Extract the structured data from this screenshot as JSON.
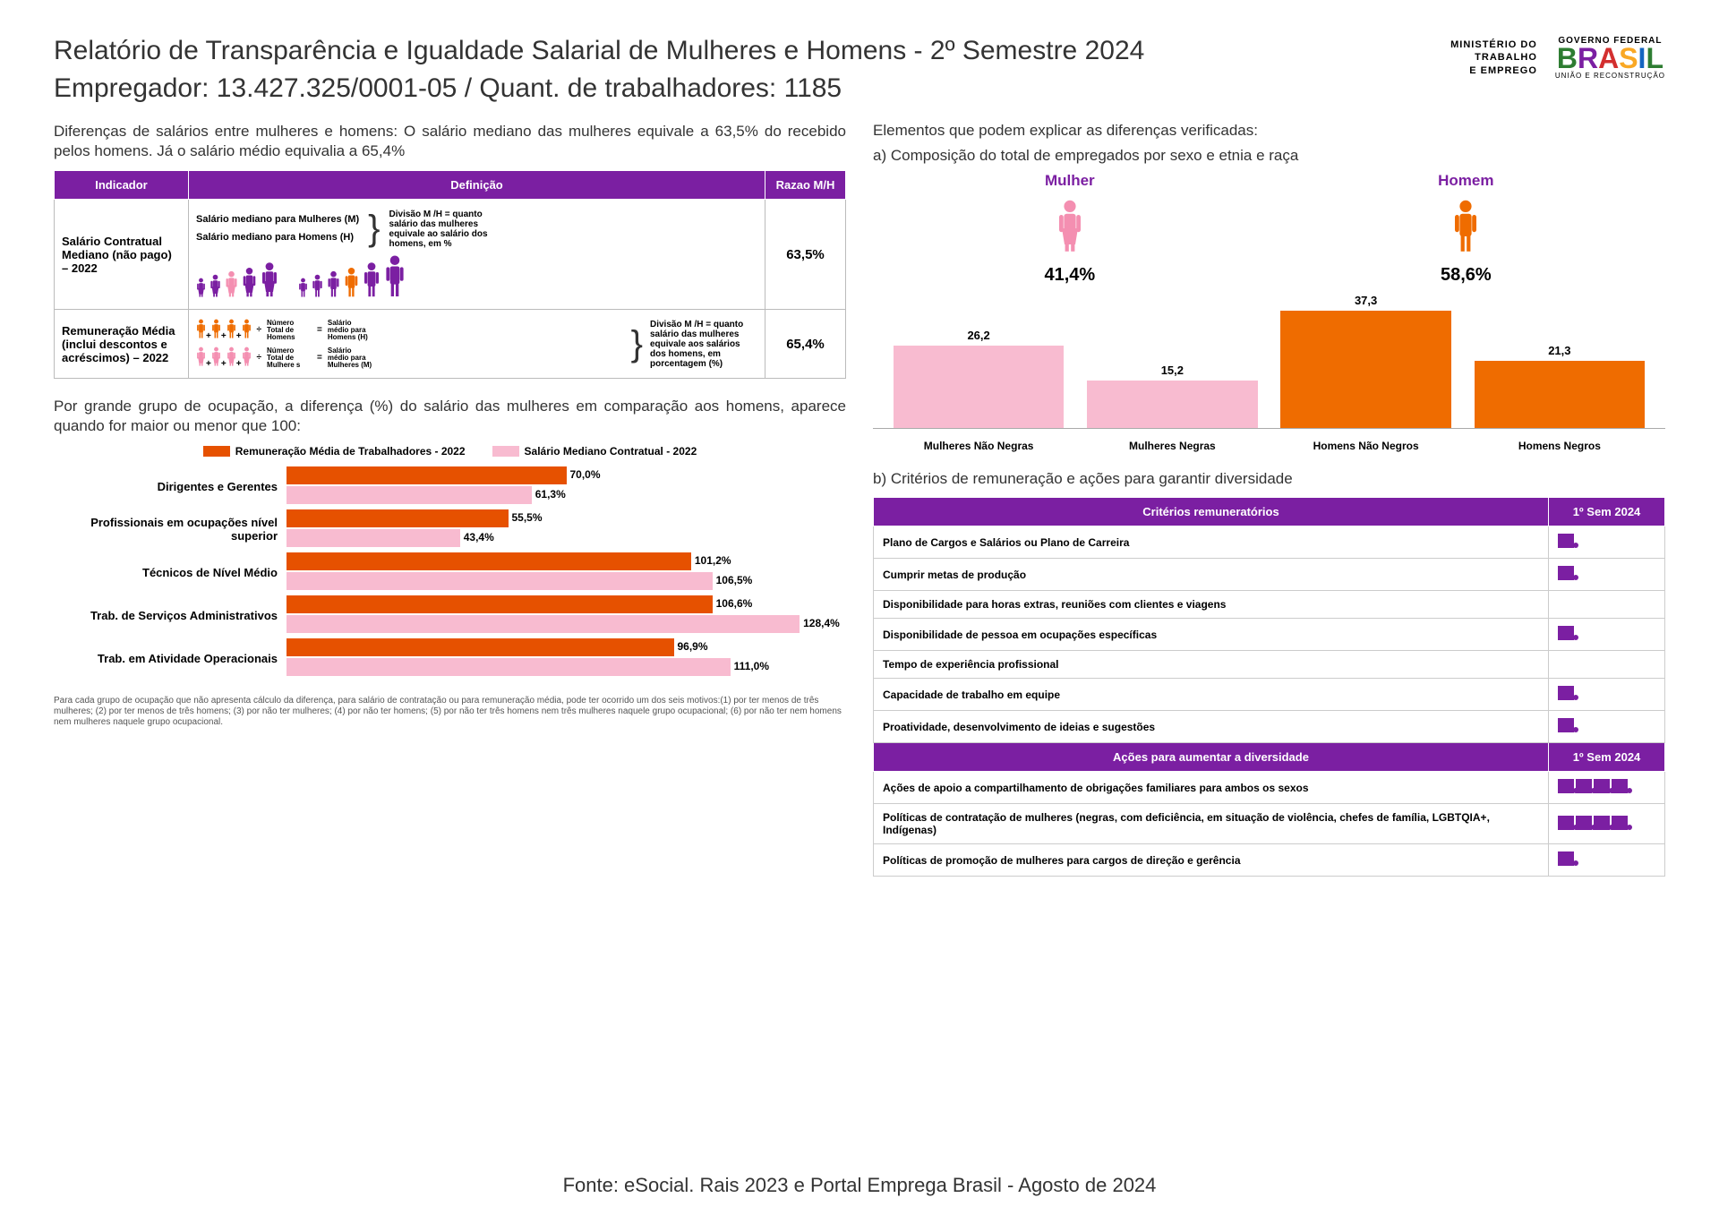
{
  "header": {
    "title": "Relatório de Transparência e Igualdade Salarial de Mulheres e Homens - 2º Semestre 2024",
    "subtitle_prefix": "Empregador: ",
    "employer": "13.427.325/0001-05",
    "separator": "    /    ",
    "workers_prefix": "Quant. de trabalhadores: ",
    "workers": "1185",
    "ministry_l1": "MINISTÉRIO DO",
    "ministry_l2": "TRABALHO",
    "ministry_l3": "E EMPREGO",
    "gov_top": "GOVERNO FEDERAL",
    "gov_bot": "UNIÃO E RECONSTRUÇÃO"
  },
  "left": {
    "intro": "Diferenças de salários entre mulheres e homens: O salário mediano das mulheres equivale a 63,5% do recebido pelos homens. Já o salário médio equivalia a 65,4%",
    "table_headers": {
      "c1": "Indicador",
      "c2": "Definição",
      "c3": "Razao M/H"
    },
    "row1": {
      "indicator": "Salário Contratual Mediano (não pago) – 2022",
      "def_m": "Salário mediano para Mulheres (M)",
      "def_h": "Salário mediano para Homens (H)",
      "def_expl": "Divisão M /H = quanto salário das mulheres equivale ao salário dos homens, em %",
      "ratio": "63,5%"
    },
    "row2": {
      "indicator": "Remuneração Média (inclui descontos e acréscimos) – 2022",
      "num_h": "Número Total de Homens",
      "sal_h": "Salário médio para Homens (H)",
      "num_m": "Número Total de Mulhere s",
      "sal_m": "Salário médio para Mulheres (M)",
      "def_expl": "Divisão M /H = quanto salário das mulheres equivale aos salários dos homens, em porcentagem (%)",
      "ratio": "65,4%"
    },
    "occ_intro": "Por grande grupo de ocupação, a diferença (%) do salário das mulheres em comparação aos homens, aparece quando for maior ou menor que 100:",
    "legend": {
      "a": "Remuneração Média de Trabalhadores - 2022",
      "b": "Salário Mediano Contratual - 2022",
      "color_a": "#e65100",
      "color_b": "#f8bbd0"
    },
    "occupations": [
      {
        "label": "Dirigentes e Gerentes",
        "rem": 70.0,
        "sal": 61.3
      },
      {
        "label": "Profissionais em ocupações nível superior",
        "rem": 55.5,
        "sal": 43.4
      },
      {
        "label": "Técnicos de Nível Médio",
        "rem": 101.2,
        "sal": 106.5
      },
      {
        "label": "Trab. de Serviços Administrativos",
        "rem": 106.6,
        "sal": 128.4
      },
      {
        "label": "Trab. em Atividade Operacionais",
        "rem": 96.9,
        "sal": 111.0
      }
    ],
    "occ_max": 140,
    "footnote": "Para cada grupo de ocupação que não apresenta cálculo da diferença, para salário de contratação ou para remuneração média, pode ter ocorrido um dos seis motivos:(1) por ter menos de três mulheres; (2) por ter menos de três homens; (3) por não ter mulheres; (4) por não ter homens; (5) por não ter três homens nem três mulheres naquele grupo ocupacional; (6) por não ter nem homens nem mulheres naquele grupo ocupacional."
  },
  "right": {
    "intro": "Elementos que podem explicar as diferenças verificadas:",
    "section_a": "a) Composição do total de empregados por sexo e etnia e raça",
    "mulher": {
      "label": "Mulher",
      "pct": "41,4%",
      "color": "#f48fb1"
    },
    "homem": {
      "label": "Homem",
      "pct": "58,6%",
      "color": "#ef6c00"
    },
    "comp_bars": [
      {
        "label": "Mulheres Não Negras",
        "value": 26.2,
        "color": "#f8bbd0"
      },
      {
        "label": "Mulheres Negras",
        "value": 15.2,
        "color": "#f8bbd0"
      },
      {
        "label": "Homens Não Negros",
        "value": 37.3,
        "color": "#ef6c00"
      },
      {
        "label": "Homens Negros",
        "value": 21.3,
        "color": "#ef6c00"
      }
    ],
    "comp_max": 40,
    "section_b": "b) Critérios de remuneração e ações para garantir diversidade",
    "crit_header": {
      "c1": "Critérios remuneratórios",
      "c2": "1º Sem 2024"
    },
    "criteria": [
      {
        "label": "Plano de Cargos e Salários ou Plano de Carreira",
        "icons": 1
      },
      {
        "label": "Cumprir metas de produção",
        "icons": 1
      },
      {
        "label": "Disponibilidade para horas extras, reuniões com clientes e viagens",
        "icons": 0
      },
      {
        "label": "Disponibilidade de pessoa em ocupações específicas",
        "icons": 1
      },
      {
        "label": "Tempo de experiência profissional",
        "icons": 0
      },
      {
        "label": "Capacidade de trabalho em equipe",
        "icons": 1
      },
      {
        "label": "Proatividade, desenvolvimento de ideias e sugestões",
        "icons": 1
      }
    ],
    "act_header": {
      "c1": "Ações para aumentar a diversidade",
      "c2": "1º Sem 2024"
    },
    "actions": [
      {
        "label": "Ações de apoio a compartilhamento de obrigações familiares para ambos os sexos",
        "icons": 4
      },
      {
        "label": "Políticas de contratação de mulheres (negras, com deficiência, em situação de violência, chefes de família, LGBTQIA+, Indígenas)",
        "icons": 4
      },
      {
        "label": "Políticas de promoção de mulheres para cargos de direção e gerência",
        "icons": 1
      }
    ]
  },
  "source": "Fonte: eSocial. Rais 2023 e Portal Emprega Brasil - Agosto de 2024",
  "colors": {
    "purple": "#7b1fa2",
    "orange": "#ef6c00",
    "pink": "#f8bbd0",
    "pink_dark": "#f48fb1"
  }
}
